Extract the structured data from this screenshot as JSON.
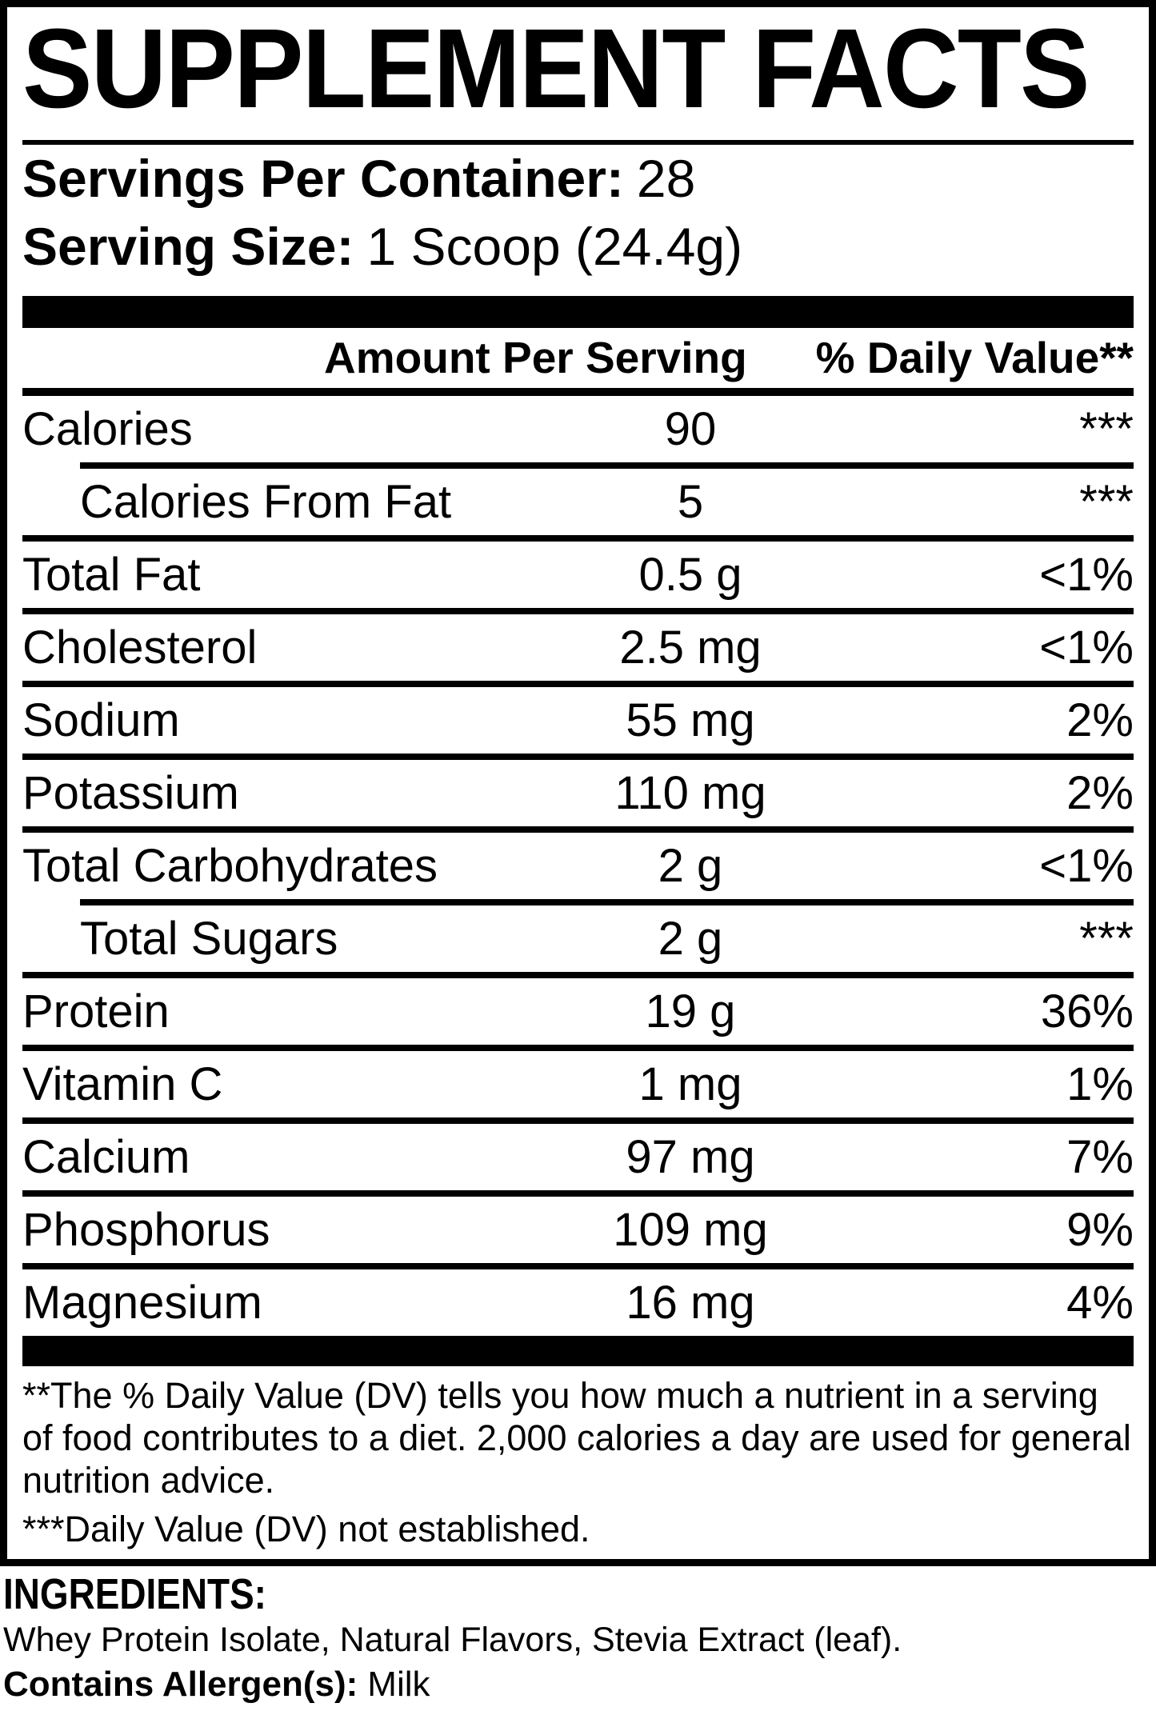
{
  "title": "SUPPLEMENT FACTS",
  "serving_info": {
    "servings_label": "Servings Per Container:",
    "servings_value": "28",
    "size_label": "Serving Size:",
    "size_value": "1 Scoop (24.4g)"
  },
  "table": {
    "amount_header": "Amount Per Serving",
    "dv_header": "% Daily Value**",
    "rows": [
      {
        "name": "Calories",
        "amount": "90",
        "dv": "***",
        "indent": false,
        "sep": "none"
      },
      {
        "name": "Calories From Fat",
        "amount": "5",
        "dv": "***",
        "indent": true,
        "sep": "indent"
      },
      {
        "name": "Total Fat",
        "amount": "0.5 g",
        "dv": "<1%",
        "indent": false,
        "sep": "full"
      },
      {
        "name": "Cholesterol",
        "amount": "2.5 mg",
        "dv": "<1%",
        "indent": false,
        "sep": "full"
      },
      {
        "name": "Sodium",
        "amount": "55 mg",
        "dv": "2%",
        "indent": false,
        "sep": "full"
      },
      {
        "name": "Potassium",
        "amount": "110 mg",
        "dv": "2%",
        "indent": false,
        "sep": "full"
      },
      {
        "name": "Total Carbohydrates",
        "amount": "2 g",
        "dv": "<1%",
        "indent": false,
        "sep": "full"
      },
      {
        "name": "Total Sugars",
        "amount": "2 g",
        "dv": "***",
        "indent": true,
        "sep": "indent"
      },
      {
        "name": "Protein",
        "amount": "19 g",
        "dv": "36%",
        "indent": false,
        "sep": "full"
      },
      {
        "name": "Vitamin C",
        "amount": "1 mg",
        "dv": "1%",
        "indent": false,
        "sep": "full"
      },
      {
        "name": "Calcium",
        "amount": "97 mg",
        "dv": "7%",
        "indent": false,
        "sep": "full"
      },
      {
        "name": "Phosphorus",
        "amount": "109 mg",
        "dv": "9%",
        "indent": false,
        "sep": "full"
      },
      {
        "name": "Magnesium",
        "amount": "16 mg",
        "dv": "4%",
        "indent": false,
        "sep": "full"
      }
    ]
  },
  "footnotes": {
    "dv_note": "**The % Daily Value (DV) tells you how much a nutrient in a serving of food contributes to a diet. 2,000 calories a day are used for general nutrition advice.",
    "not_established": "***Daily Value (DV) not established."
  },
  "ingredients": {
    "heading": "INGREDIENTS:",
    "list": "Whey Protein Isolate, Natural Flavors, Stevia Extract (leaf).",
    "allergen_label": "Contains Allergen(s):",
    "allergen_value": "Milk"
  },
  "colors": {
    "foreground": "#000000",
    "background": "#ffffff"
  }
}
